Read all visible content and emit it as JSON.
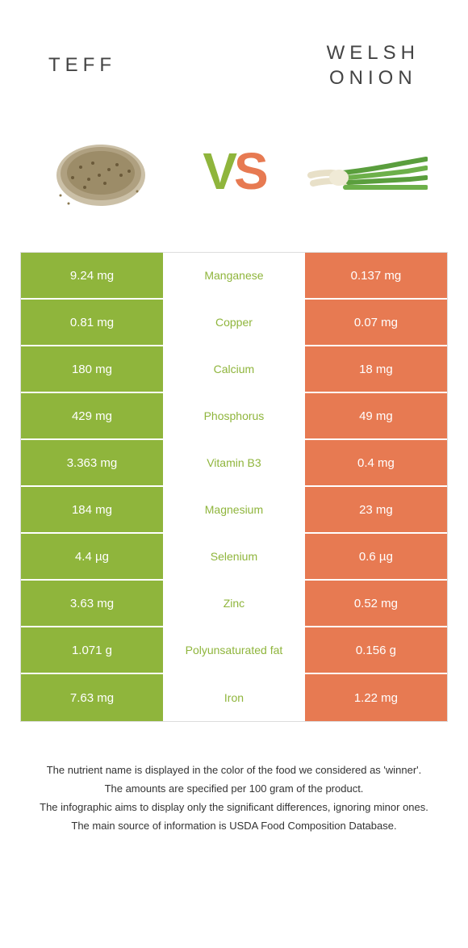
{
  "header": {
    "leftTitle": "TEFF",
    "rightTitleLine1": "WELSH",
    "rightTitleLine2": "ONION"
  },
  "vs": {
    "vLetter": "V",
    "sLetter": "S"
  },
  "colors": {
    "leftBg": "#8fb53c",
    "rightBg": "#e77a52",
    "leftText": "#8fb53c",
    "rightText": "#e77a52",
    "titleColor": "#444444",
    "borderColor": "#dddddd",
    "background": "#ffffff"
  },
  "rows": [
    {
      "left": "9.24 mg",
      "center": "Manganese",
      "right": "0.137 mg",
      "winnerColor": "#8fb53c"
    },
    {
      "left": "0.81 mg",
      "center": "Copper",
      "right": "0.07 mg",
      "winnerColor": "#8fb53c"
    },
    {
      "left": "180 mg",
      "center": "Calcium",
      "right": "18 mg",
      "winnerColor": "#8fb53c"
    },
    {
      "left": "429 mg",
      "center": "Phosphorus",
      "right": "49 mg",
      "winnerColor": "#8fb53c"
    },
    {
      "left": "3.363 mg",
      "center": "Vitamin B3",
      "right": "0.4 mg",
      "winnerColor": "#8fb53c"
    },
    {
      "left": "184 mg",
      "center": "Magnesium",
      "right": "23 mg",
      "winnerColor": "#8fb53c"
    },
    {
      "left": "4.4 µg",
      "center": "Selenium",
      "right": "0.6 µg",
      "winnerColor": "#8fb53c"
    },
    {
      "left": "3.63 mg",
      "center": "Zinc",
      "right": "0.52 mg",
      "winnerColor": "#8fb53c"
    },
    {
      "left": "1.071 g",
      "center": "Polyunsaturated fat",
      "right": "0.156 g",
      "winnerColor": "#8fb53c"
    },
    {
      "left": "7.63 mg",
      "center": "Iron",
      "right": "1.22 mg",
      "winnerColor": "#8fb53c"
    }
  ],
  "footer": {
    "line1": "The nutrient name is displayed in the color of the food we considered as 'winner'.",
    "line2": "The amounts are specified per 100 gram of the product.",
    "line3": "The infographic aims to display only the significant differences, ignoring minor ones.",
    "line4": "The main source of information is USDA Food Composition Database."
  }
}
